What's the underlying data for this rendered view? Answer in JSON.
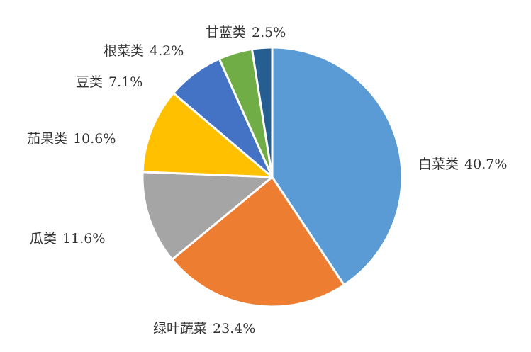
{
  "chart_data": {
    "type": "pie",
    "title": "",
    "slices": [
      {
        "label": "白菜类",
        "value": 40.7,
        "value_text": "40.7%",
        "color": "#5B9BD5"
      },
      {
        "label": "绿叶蔬菜",
        "value": 23.4,
        "value_text": "23.4%",
        "color": "#ED7D31"
      },
      {
        "label": "瓜类",
        "value": 11.6,
        "value_text": "11.6%",
        "color": "#A5A5A5"
      },
      {
        "label": "茄果类",
        "value": 10.6,
        "value_text": "10.6%",
        "color": "#FFC000"
      },
      {
        "label": "豆类",
        "value": 7.1,
        "value_text": "7.1%",
        "color": "#4472C4"
      },
      {
        "label": "根菜类",
        "value": 4.2,
        "value_text": "4.2%",
        "color": "#70AD47"
      },
      {
        "label": "甘蓝类",
        "value": 2.5,
        "value_text": "2.5%",
        "color": "#255E91"
      }
    ],
    "start_angle_deg": 0,
    "direction": "clockwise",
    "legend": "none",
    "data_labels": "category and percentage, outside end"
  }
}
